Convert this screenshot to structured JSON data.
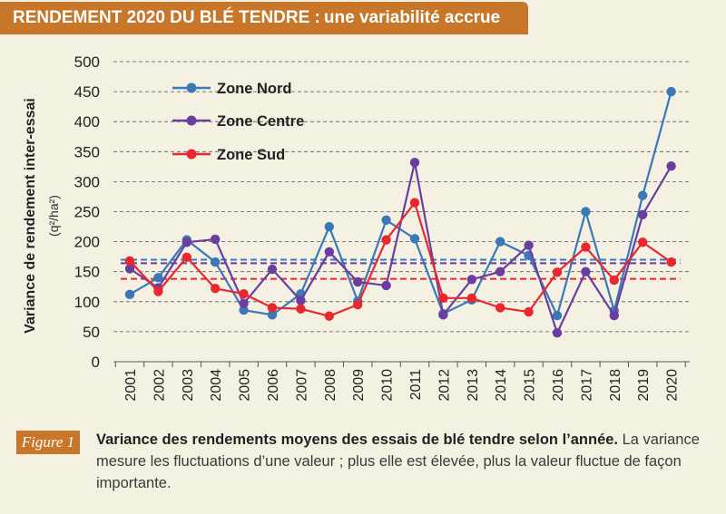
{
  "banner": {
    "title_bold": "RENDEMENT 2020 DU BLÉ TENDRE :",
    "title_rest": "une variabilité accrue"
  },
  "caption": {
    "figure_label": "Figure 1",
    "bold": "Variance des rendements moyens des essais de blé tendre selon l’année.",
    "text": "La variance mesure les fluctuations d’une valeur ; plus elle est élevée, plus la valeur fluctue de façon importante."
  },
  "chart_data": {
    "type": "line",
    "title": "",
    "ylabel": "Variance  de rendement inter-essai",
    "ylabel_unit": "(q²/ha²)",
    "xlabel": "",
    "ylim": [
      0,
      500
    ],
    "yticks": [
      0,
      50,
      100,
      150,
      200,
      250,
      300,
      350,
      400,
      450,
      500
    ],
    "grid": "horizontal dashed",
    "legend_position": "top-left",
    "categories": [
      "2001",
      "2002",
      "2003",
      "2004",
      "2005",
      "2006",
      "2007",
      "2008",
      "2009",
      "2010",
      "2011",
      "2012",
      "2013",
      "2014",
      "2015",
      "2016",
      "2017",
      "2018",
      "2019",
      "2020"
    ],
    "series": [
      {
        "name": "Zone Nord",
        "color": "#3a78b8",
        "values": [
          112,
          140,
          203,
          166,
          86,
          78,
          113,
          225,
          101,
          236,
          205,
          80,
          103,
          200,
          177,
          77,
          250,
          85,
          277,
          450
        ],
        "mean": 170
      },
      {
        "name": "Zone Centre",
        "color": "#6a3ea0",
        "values": [
          155,
          123,
          199,
          204,
          97,
          154,
          102,
          183,
          133,
          127,
          332,
          78,
          137,
          150,
          194,
          48,
          150,
          77,
          245,
          326
        ],
        "mean": 164
      },
      {
        "name": "Zone Sud",
        "color": "#e8282e",
        "values": [
          168,
          117,
          174,
          122,
          113,
          90,
          88,
          76,
          95,
          203,
          265,
          106,
          106,
          90,
          83,
          149,
          191,
          136,
          199,
          166
        ],
        "mean": 138
      }
    ]
  }
}
